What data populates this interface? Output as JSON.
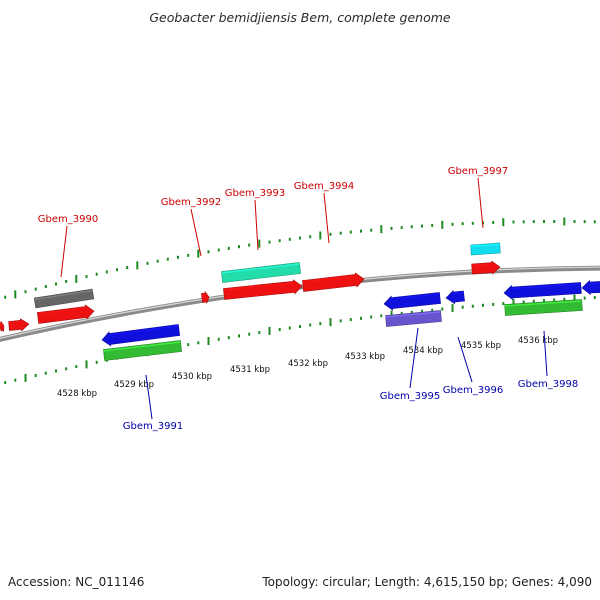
{
  "header": {
    "title": "Geobacter bemidjiensis Bem, complete genome"
  },
  "footer": {
    "accession": "Accession: NC_011146",
    "summary": "Topology: circular; Length: 4,615,150 bp; Genes: 4,090"
  },
  "colors": {
    "backbone": "#8a8a8a",
    "tick": "#1f8a1f",
    "forward_label": "#cc0000",
    "reverse_label": "#0000aa",
    "cds_red": "#ee1111",
    "cds_blue": "#1010dd",
    "rna_green": "#33bb33",
    "rna_teal": "#22ddaa",
    "cyan": "#11ddee",
    "gray": "#666666",
    "slate": "#6655cc"
  },
  "scale": {
    "kbp_labels": [
      "4528 kbp",
      "4529 kbp",
      "4530 kbp",
      "4531 kbp",
      "4532 kbp",
      "4533 kbp",
      "4534 kbp",
      "4535 kbp",
      "4536 kbp"
    ],
    "kbp_values": [
      4528,
      4529,
      4530,
      4531,
      4532,
      4533,
      4534,
      4535,
      4536
    ]
  },
  "genes": {
    "forward_labels": [
      "Gbem_3990",
      "Gbem_3992",
      "Gbem_3993",
      "Gbem_3994",
      "Gbem_3997"
    ],
    "reverse_labels": [
      "Gbem_3991",
      "Gbem_3995",
      "Gbem_3996",
      "Gbem_3998"
    ]
  }
}
